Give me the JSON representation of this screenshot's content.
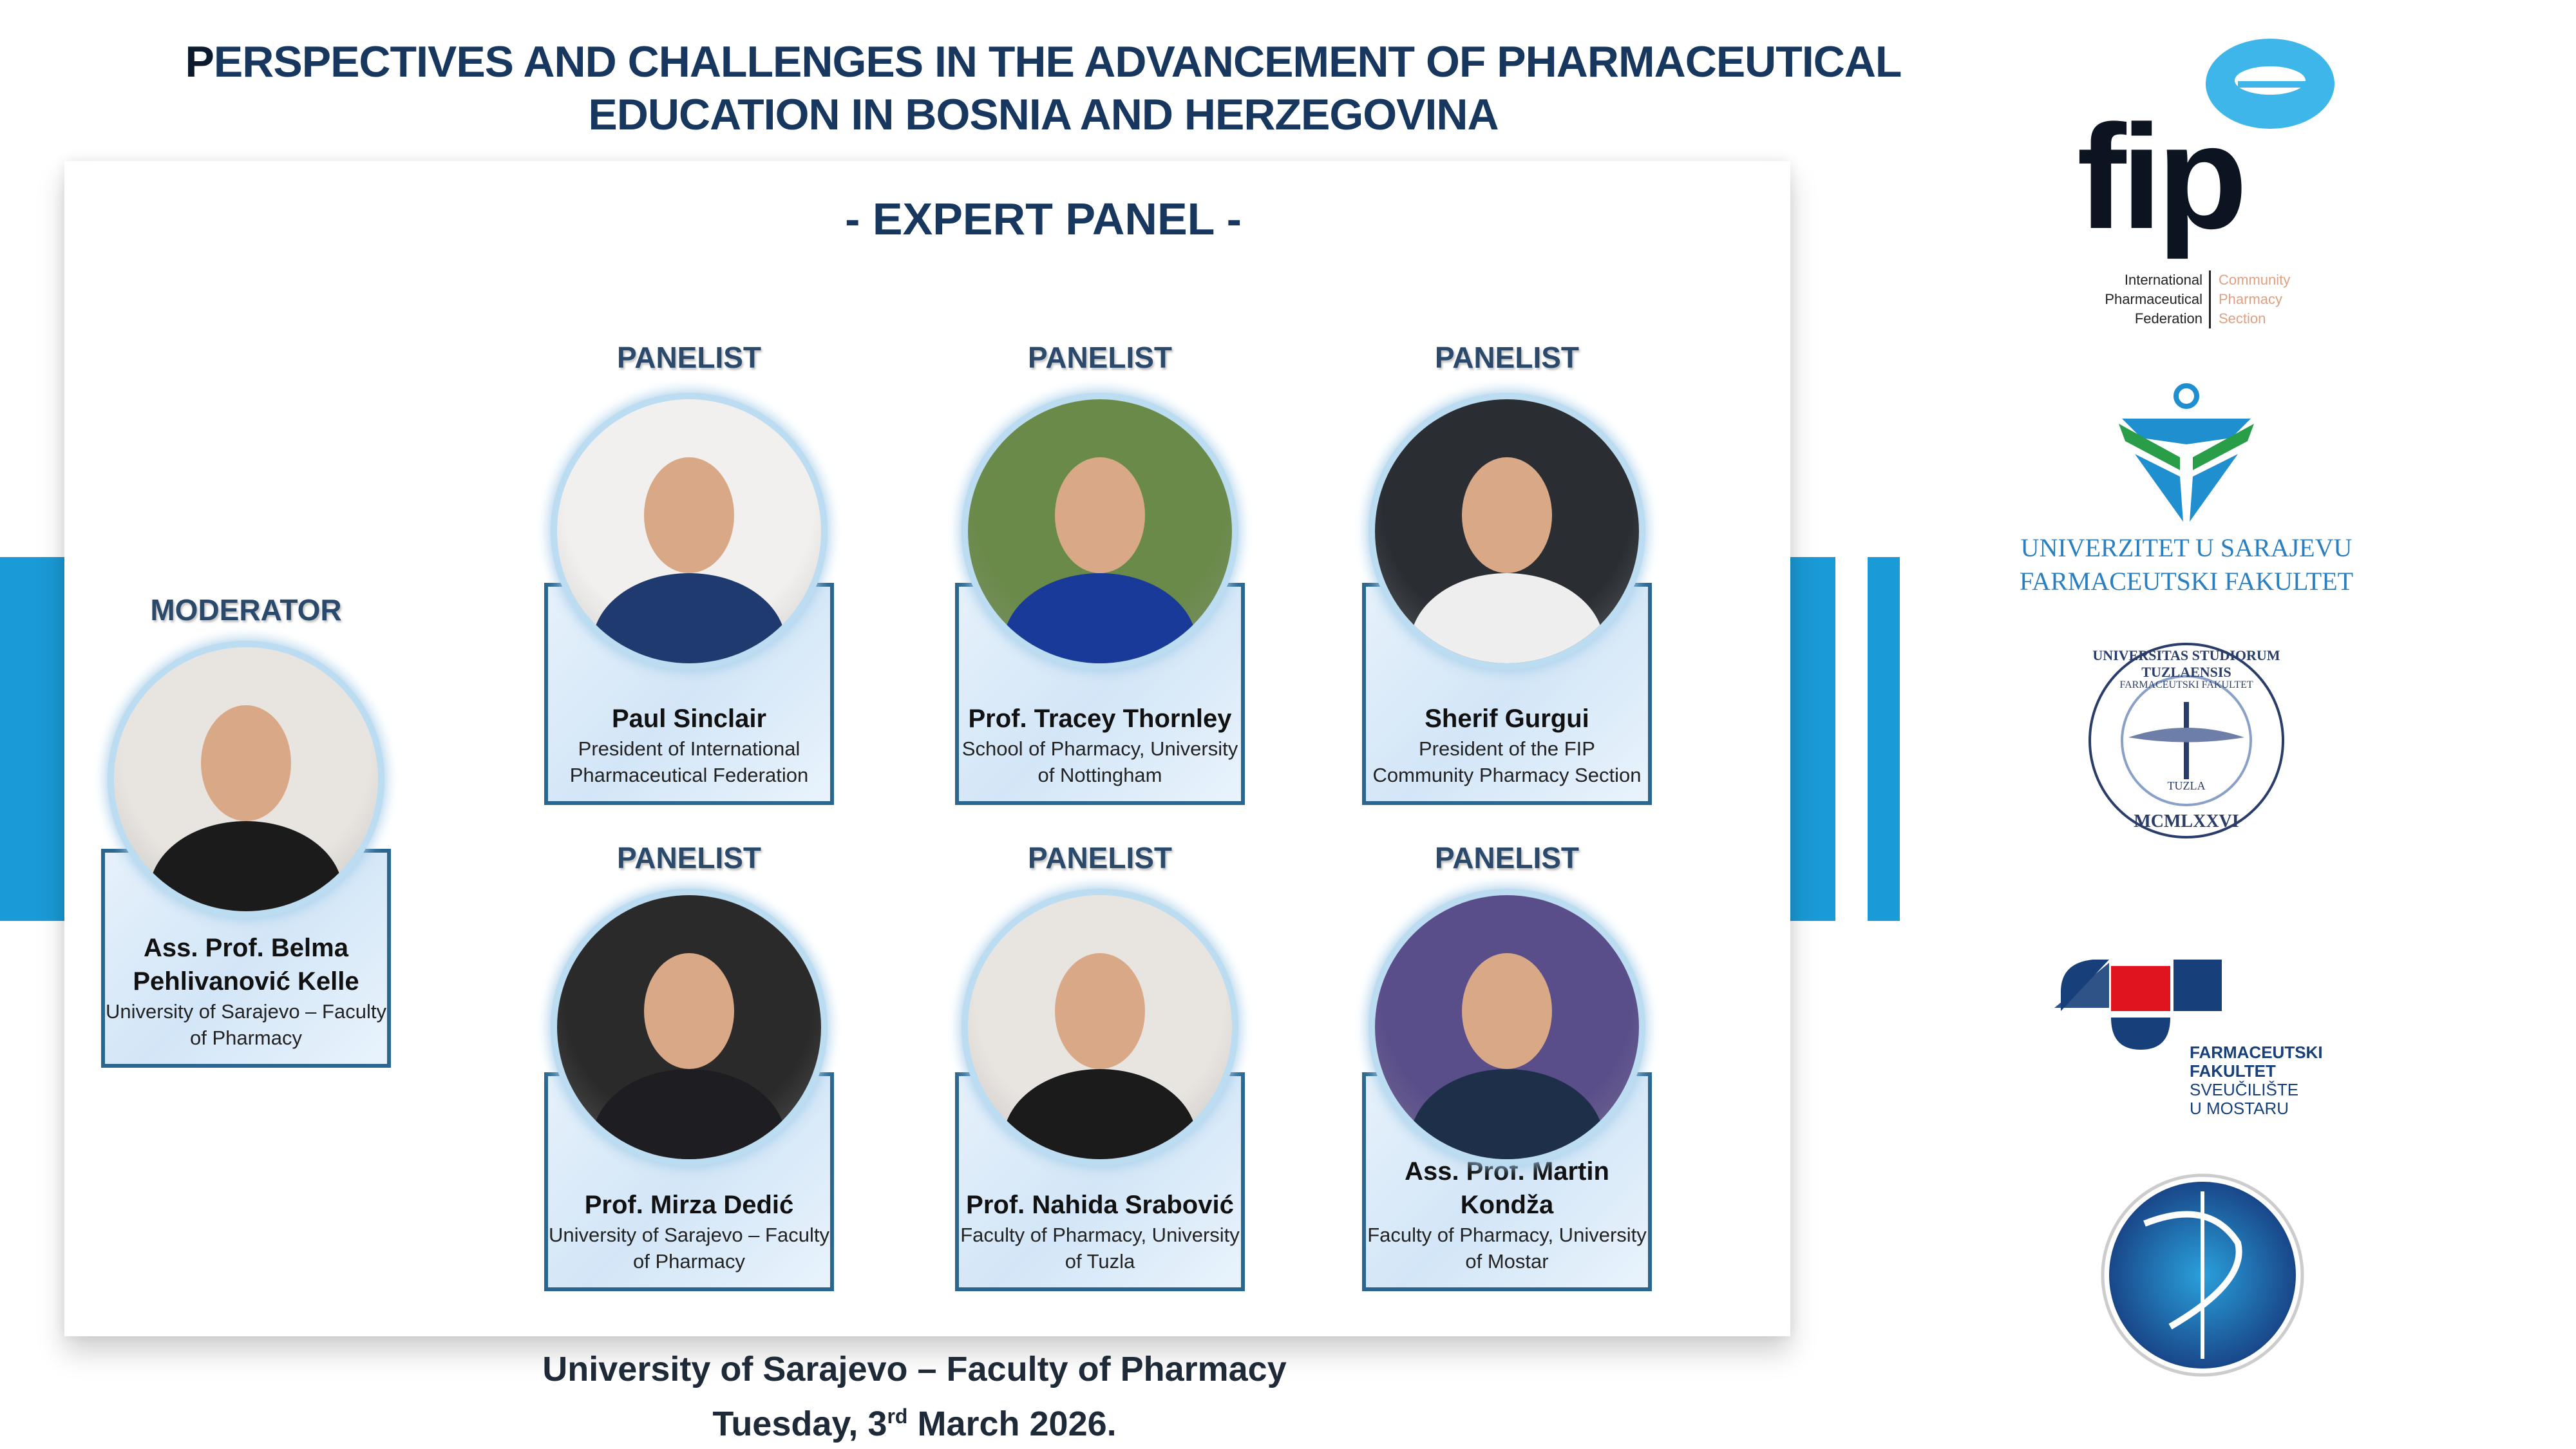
{
  "header": {
    "title_first_letter": "P",
    "title_line1_rest": "ERSPECTIVES AND CHALLENGES IN THE ADVANCEMENT OF PHARMACEUTICAL",
    "title_line2": "EDUCATION IN BOSNIA AND HERZEGOVINA",
    "subtitle": "- EXPERT PANEL -"
  },
  "colors": {
    "accent_blue": "#1a9ad6",
    "navy": "#17375e",
    "box_border": "#2a6690"
  },
  "moderator": {
    "role": "MODERATOR",
    "name": "Ass. Prof. Belma Pehlivanović Kelle",
    "affiliation": "University of Sarajevo – Faculty of Pharmacy"
  },
  "panelists": [
    {
      "role": "PANELIST",
      "name": "Paul Sinclair",
      "affiliation": "President of International Pharmaceutical Federation"
    },
    {
      "role": "PANELIST",
      "name": "Prof. Tracey Thornley",
      "affiliation": "School of Pharmacy, University of Nottingham"
    },
    {
      "role": "PANELIST",
      "name": "Sherif Gurgui",
      "affiliation": "President of the FIP Community Pharmacy Section"
    },
    {
      "role": "PANELIST",
      "name": "Prof. Mirza Dedić",
      "affiliation": "University of Sarajevo – Faculty of Pharmacy"
    },
    {
      "role": "PANELIST",
      "name": "Prof. Nahida Srabović",
      "affiliation": "Faculty of Pharmacy, University of Tuzla"
    },
    {
      "role": "PANELIST",
      "name": "Ass. Prof. Martin Kondža",
      "affiliation": "Faculty of Pharmacy, University of Mostar"
    }
  ],
  "footer": {
    "venue": "University of Sarajevo – Faculty of Pharmacy",
    "date_prefix": "Tuesday, 3",
    "date_sup": "rd",
    "date_suffix": " March 2026."
  },
  "logos": {
    "fip": {
      "wordmark": "fip",
      "left": [
        "International",
        "Pharmaceutical",
        "Federation"
      ],
      "right": [
        "Community",
        "Pharmacy",
        "Section"
      ]
    },
    "sarajevo": [
      "UNIVERZITET U SARAJEVU",
      "FARMACEUTSKI FAKULTET"
    ],
    "tuzla": {
      "outer": "UNIVERSITAS STUDIORUM TUZLAENSIS",
      "inner": "FARMACEUTSKI FAKULTET",
      "city": "TUZLA",
      "year": "MCMLXXVI"
    },
    "mostar": [
      "FARMACEUTSKI",
      "FAKULTET",
      "SVEUČILIŠTE",
      "U MOSTARU"
    ],
    "fifth": "caduceus-emblem"
  }
}
